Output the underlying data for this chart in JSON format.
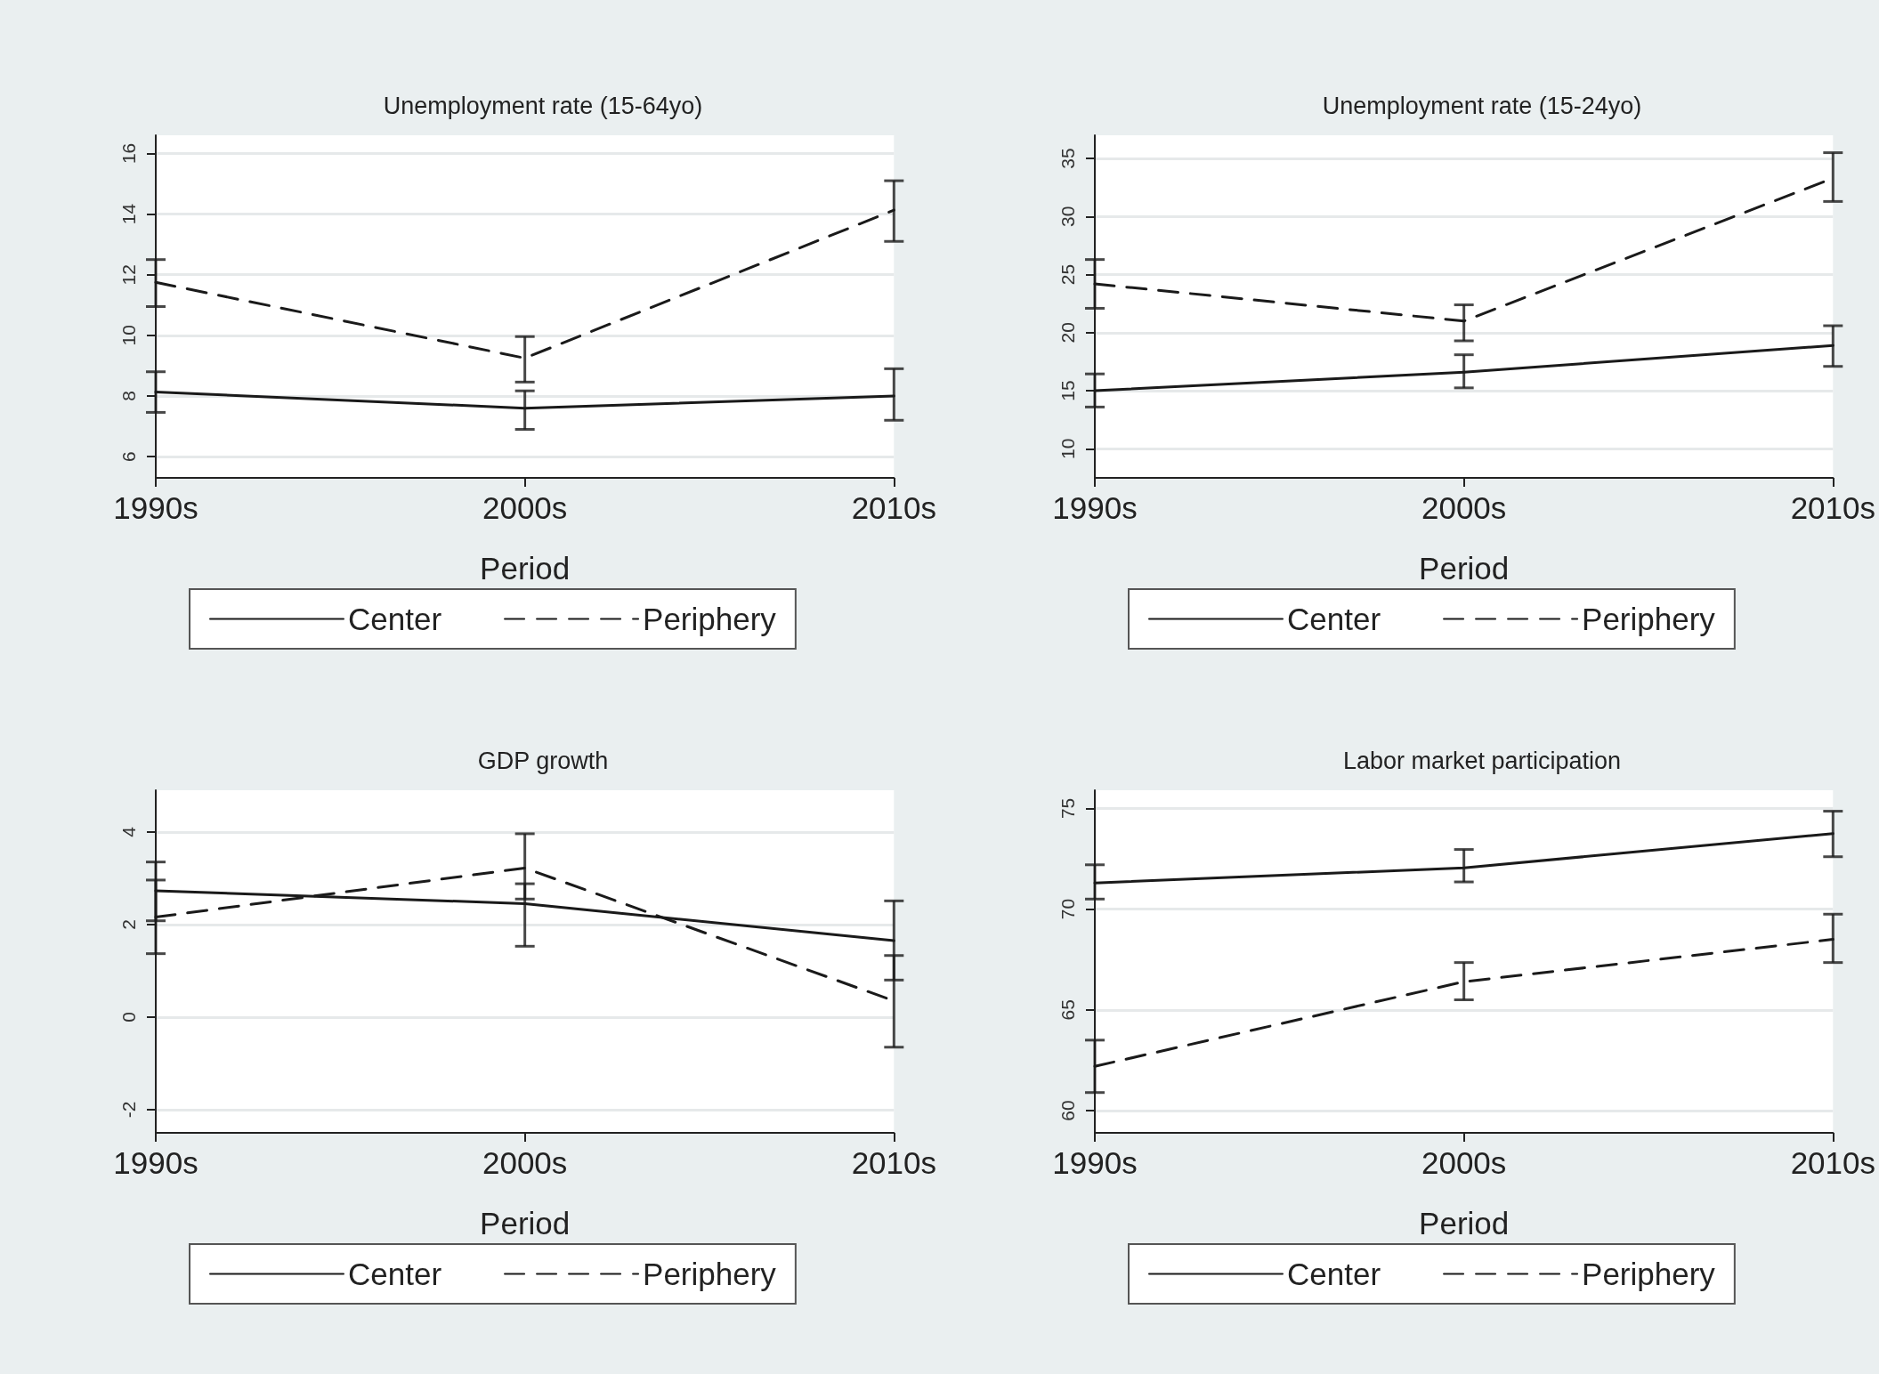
{
  "chart_data": [
    {
      "type": "line",
      "title": "Unemployment rate (15-64yo)",
      "xlabel": "Period",
      "categories": [
        "1990s",
        "2000s",
        "2010s"
      ],
      "grid": "y",
      "legend": "bottom",
      "marker": "none",
      "ylim": [
        5.3,
        16.6
      ],
      "yticks": [
        6,
        8,
        10,
        12,
        14,
        16
      ],
      "series": [
        {
          "name": "Center",
          "color": "#1a1a1a",
          "line_style": "solid",
          "values": [
            8.13,
            7.6,
            8.0
          ],
          "errors": [
            [
              7.46,
              8.8
            ],
            [
              6.9,
              8.17
            ],
            [
              7.2,
              8.9
            ]
          ]
        },
        {
          "name": "Periphery",
          "color": "#1a1a1a",
          "line_style": "dashed",
          "values": [
            11.75,
            9.25,
            14.13
          ],
          "errors": [
            [
              10.95,
              12.5
            ],
            [
              8.46,
              9.96
            ],
            [
              13.1,
              15.1
            ]
          ]
        }
      ]
    },
    {
      "type": "line",
      "title": "Unemployment rate (15-24yo)",
      "xlabel": "Period",
      "categories": [
        "1990s",
        "2000s",
        "2010s"
      ],
      "grid": "y",
      "legend": "bottom",
      "marker": "none",
      "ylim": [
        7.5,
        37
      ],
      "yticks": [
        10,
        15,
        20,
        25,
        30,
        35
      ],
      "series": [
        {
          "name": "Center",
          "color": "#1a1a1a",
          "line_style": "solid",
          "values": [
            15.0,
            16.6,
            18.9
          ],
          "errors": [
            [
              13.6,
              16.45
            ],
            [
              15.25,
              18.1
            ],
            [
              17.1,
              20.6
            ]
          ]
        },
        {
          "name": "Periphery",
          "color": "#1a1a1a",
          "line_style": "dashed",
          "values": [
            24.2,
            21.0,
            33.3
          ],
          "errors": [
            [
              22.1,
              26.3
            ],
            [
              19.3,
              22.4
            ],
            [
              31.3,
              35.5
            ]
          ]
        }
      ]
    },
    {
      "type": "line",
      "title": "GDP growth",
      "xlabel": "Period",
      "categories": [
        "1990s",
        "2000s",
        "2010s"
      ],
      "grid": "y",
      "legend": "bottom",
      "marker": "none",
      "ylim": [
        -2.5,
        4.9
      ],
      "yticks": [
        -2,
        0,
        2,
        4
      ],
      "series": [
        {
          "name": "Center",
          "color": "#1a1a1a",
          "line_style": "solid",
          "values": [
            2.73,
            2.45,
            1.65
          ],
          "errors": [
            [
              2.08,
              3.35
            ],
            [
              1.53,
              2.88
            ],
            [
              0.8,
              2.51
            ]
          ]
        },
        {
          "name": "Periphery",
          "color": "#1a1a1a",
          "line_style": "dashed",
          "values": [
            2.16,
            3.22,
            0.35
          ],
          "errors": [
            [
              1.37,
              2.96
            ],
            [
              2.55,
              3.96
            ],
            [
              -0.65,
              1.33
            ]
          ]
        }
      ]
    },
    {
      "type": "line",
      "title": "Labor market participation",
      "xlabel": "Period",
      "categories": [
        "1990s",
        "2000s",
        "2010s"
      ],
      "grid": "y",
      "legend": "bottom",
      "marker": "none",
      "ylim": [
        58.9,
        75.9
      ],
      "yticks": [
        60,
        65,
        70,
        75
      ],
      "series": [
        {
          "name": "Center",
          "color": "#1a1a1a",
          "line_style": "solid",
          "values": [
            71.3,
            72.05,
            73.75
          ],
          "errors": [
            [
              70.5,
              72.2
            ],
            [
              71.35,
              72.96
            ],
            [
              72.6,
              74.86
            ]
          ]
        },
        {
          "name": "Periphery",
          "color": "#1a1a1a",
          "line_style": "dashed",
          "values": [
            62.2,
            66.4,
            68.5
          ],
          "errors": [
            [
              60.9,
              63.5
            ],
            [
              65.5,
              67.35
            ],
            [
              67.35,
              69.75
            ]
          ]
        }
      ]
    }
  ]
}
